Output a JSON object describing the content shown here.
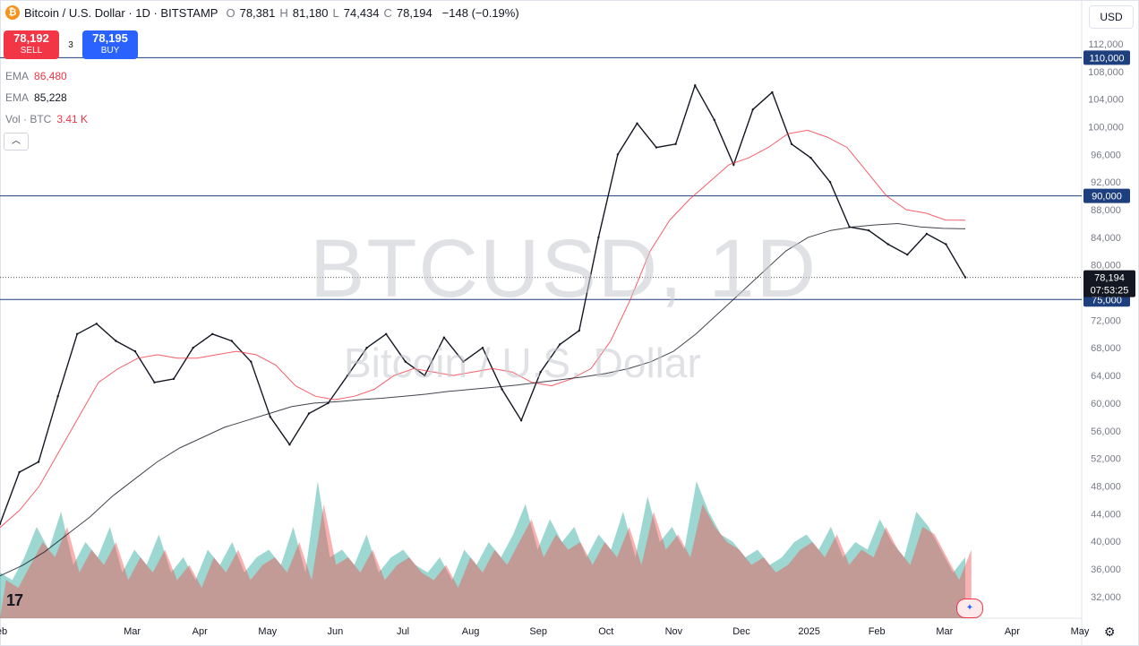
{
  "header": {
    "icon": "bitcoin-icon",
    "symbol_title": "Bitcoin / U.S. Dollar · 1D · BITSTAMP",
    "o_label": "O",
    "o_value": "78,381",
    "h_label": "H",
    "h_value": "81,180",
    "l_label": "L",
    "l_value": "74,434",
    "c_label": "C",
    "c_value": "78,194",
    "change": "−148 (−0.19%)"
  },
  "trade": {
    "sell_price": "78,192",
    "sell_label": "SELL",
    "spread": "3",
    "buy_price": "78,195",
    "buy_label": "BUY"
  },
  "indicators": [
    {
      "name": "EMA",
      "value": "86,480",
      "color": "#f23645"
    },
    {
      "name": "EMA",
      "value": "85,228",
      "color": "#131722"
    },
    {
      "name": "Vol · BTC",
      "value": "3.41 K",
      "color": "#f23645"
    }
  ],
  "currency": "USD",
  "watermark": {
    "line1": "BTCUSD, 1D",
    "line2": "Bitcoin / U.S. Dollar"
  },
  "chart_data": {
    "type": "line",
    "price_axis_ticks": [
      "112,000",
      "108,000",
      "104,000",
      "100,000",
      "96,000",
      "92,000",
      "88,000",
      "84,000",
      "80,000",
      "72,000",
      "68,000",
      "64,000",
      "60,000",
      "56,000",
      "52,000",
      "48,000",
      "44,000",
      "40,000",
      "36,000",
      "32,000"
    ],
    "ylim": [
      28000,
      114000
    ],
    "time_axis_labels": [
      "eb",
      "Mar",
      "Apr",
      "May",
      "Jun",
      "Jul",
      "Aug",
      "Sep",
      "Oct",
      "Nov",
      "Dec",
      "2025",
      "Feb",
      "Mar",
      "Apr",
      "May"
    ],
    "horizontal_levels": [
      {
        "value": 110000,
        "label": "110,000"
      },
      {
        "value": 90000,
        "label": "90,000"
      },
      {
        "value": 75000,
        "label": "75,000"
      }
    ],
    "last_price": {
      "value": 78194,
      "label": "78,194",
      "countdown": "07:53:25"
    },
    "series": [
      {
        "name": "Price",
        "color": "#131722",
        "values": [
          42500,
          50000,
          51500,
          61000,
          70000,
          71500,
          69000,
          67500,
          63000,
          63500,
          68000,
          70000,
          69000,
          66000,
          58000,
          54000,
          58500,
          60000,
          64000,
          68000,
          70000,
          66000,
          64000,
          69500,
          66000,
          68000,
          62000,
          57500,
          64500,
          68500,
          70500,
          84000,
          96000,
          100500,
          97000,
          97500,
          106000,
          101000,
          94500,
          102500,
          105000,
          97500,
          95500,
          92000,
          85500,
          85000,
          83000,
          81500,
          84500,
          83000,
          78194
        ]
      },
      {
        "name": "EMA",
        "color": "#f23645",
        "values": [
          42000,
          44500,
          48000,
          53000,
          58000,
          63000,
          65000,
          66500,
          67000,
          66500,
          66500,
          67000,
          67500,
          67000,
          65500,
          62500,
          61000,
          60500,
          61000,
          62000,
          64000,
          65000,
          64500,
          64000,
          64500,
          65000,
          64500,
          63000,
          62500,
          63500,
          65000,
          69000,
          75000,
          82000,
          86500,
          89500,
          92000,
          94500,
          95500,
          97000,
          99000,
          99500,
          98500,
          97000,
          93500,
          90000,
          88000,
          87500,
          86500,
          86480
        ]
      },
      {
        "name": "EMA",
        "color": "#131722",
        "values": [
          35000,
          36500,
          38500,
          41000,
          43500,
          46500,
          49000,
          51500,
          53500,
          55000,
          56500,
          57500,
          58500,
          59500,
          60000,
          60200,
          60500,
          60700,
          61000,
          61300,
          61700,
          62000,
          62300,
          62600,
          63000,
          63400,
          63800,
          64300,
          65000,
          66000,
          67500,
          70000,
          73000,
          76000,
          79000,
          82000,
          84000,
          85000,
          85500,
          85800,
          86000,
          85500,
          85300,
          85228
        ]
      }
    ],
    "volume_series": [
      {
        "name": "Vol · BTC",
        "color": "#26a69a",
        "values": [
          6,
          5,
          8,
          12,
          9,
          14,
          7,
          10,
          8,
          12,
          6,
          9,
          7,
          11,
          6,
          8,
          5,
          9,
          7,
          10,
          6,
          8,
          9,
          7,
          12,
          6,
          18,
          8,
          9,
          7,
          11,
          6,
          8,
          9,
          7,
          6,
          8,
          5,
          9,
          7,
          10,
          8,
          11,
          15,
          9,
          13,
          10,
          12,
          8,
          11,
          9,
          14,
          8,
          16,
          10,
          12,
          9,
          18,
          14,
          11,
          10,
          8,
          9,
          7,
          8,
          10,
          11,
          9,
          12,
          8,
          10,
          9,
          13,
          10,
          8,
          14,
          12,
          9,
          6,
          8
        ]
      },
      {
        "name": "Vol · BTC",
        "color": "#ef5350",
        "values": [
          5,
          4,
          7,
          10,
          8,
          12,
          6,
          9,
          7,
          10,
          5,
          8,
          6,
          9,
          5,
          7,
          4,
          8,
          6,
          9,
          5,
          7,
          8,
          6,
          10,
          5,
          15,
          7,
          8,
          6,
          9,
          5,
          7,
          8,
          6,
          5,
          7,
          4,
          8,
          6,
          9,
          7,
          10,
          13,
          8,
          11,
          9,
          10,
          7,
          10,
          8,
          12,
          7,
          14,
          9,
          11,
          8,
          15,
          12,
          10,
          9,
          7,
          8,
          6,
          7,
          9,
          10,
          8,
          11,
          7,
          9,
          8,
          12,
          9,
          7,
          12,
          11,
          8,
          5,
          9
        ]
      }
    ]
  }
}
